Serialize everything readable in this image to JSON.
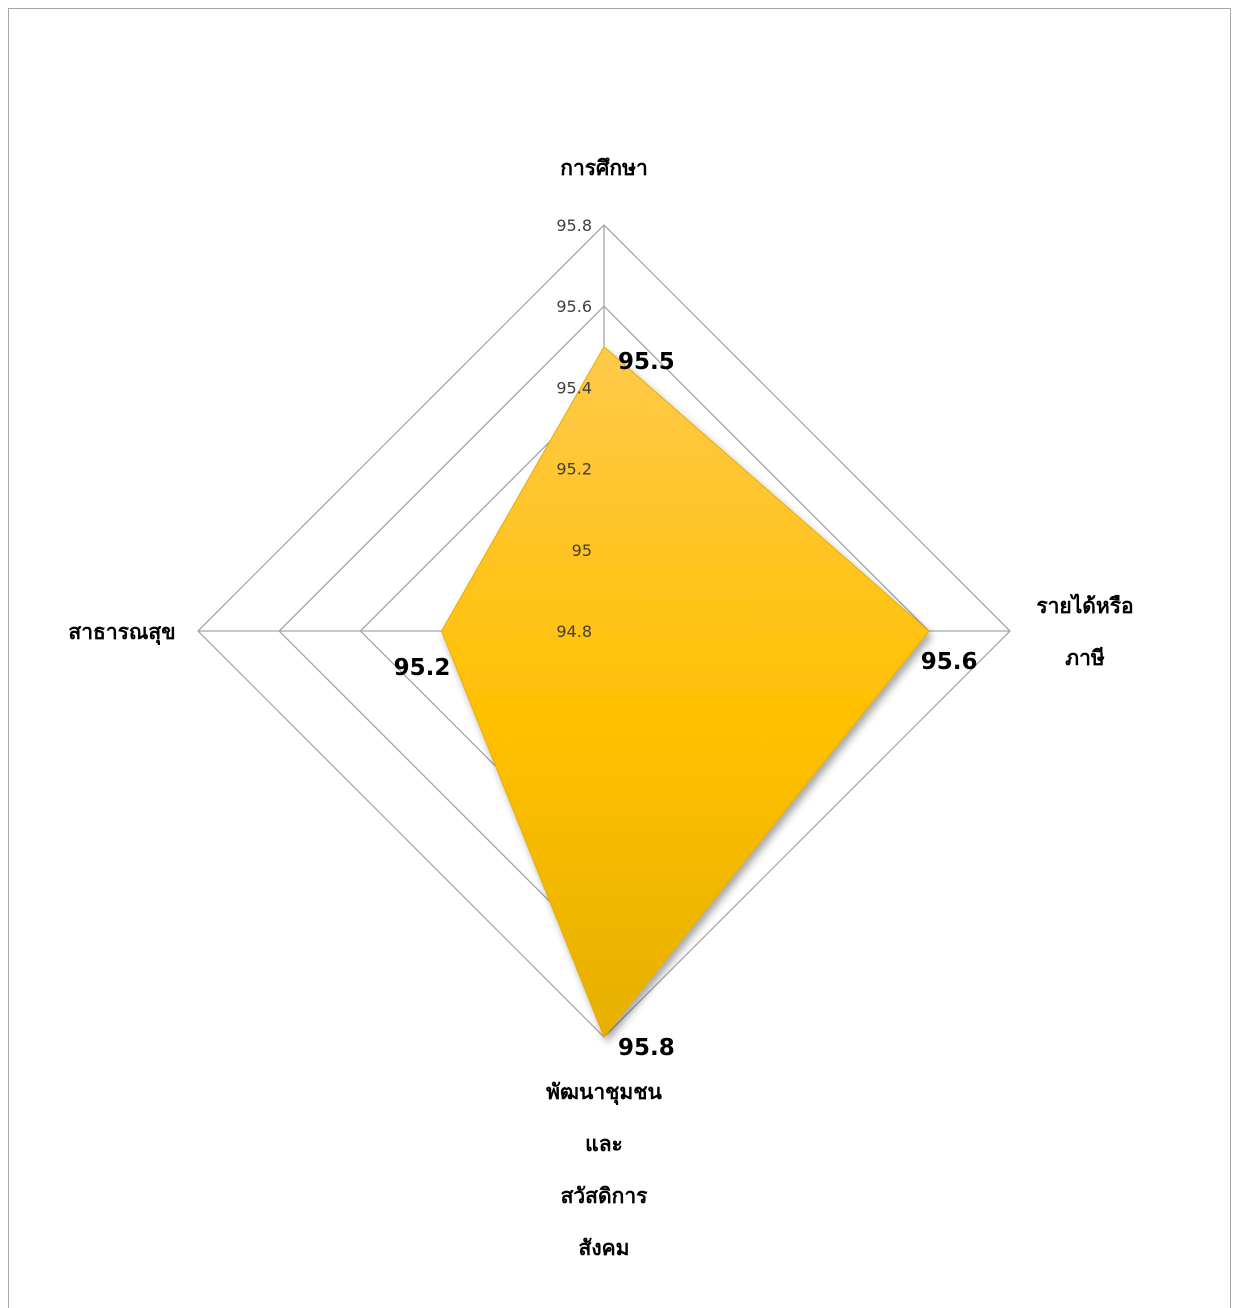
{
  "chart_data": {
    "type": "radar",
    "title": "",
    "categories": [
      [
        "การศึกษา"
      ],
      [
        "รายได้หรือ",
        "ภาษี"
      ],
      [
        "พัฒนาชุมชน",
        "และ",
        "สวัสดิการ",
        "สังคม"
      ],
      [
        "สาธารณสุข"
      ]
    ],
    "series": [
      {
        "values": [
          95.5,
          95.6,
          95.8,
          95.2
        ],
        "color": "#ffc000"
      }
    ],
    "data_labels": [
      "95.5",
      "95.6",
      "95.8",
      "95.2"
    ],
    "r_range": [
      94.8,
      95.8
    ],
    "ticks": [
      "94.8",
      "95",
      "95.2",
      "95.4",
      "95.6",
      "95.8"
    ],
    "grid": true,
    "legend": "none"
  }
}
